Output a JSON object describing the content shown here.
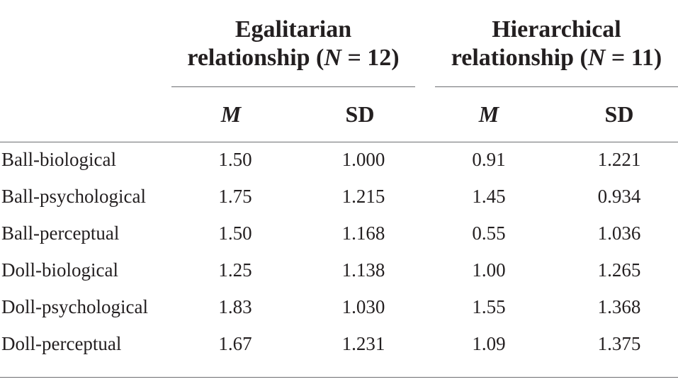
{
  "table": {
    "groups": [
      {
        "line1": "Egalitarian",
        "line2_prefix": "relationship (",
        "n_symbol": "N",
        "n_suffix": " = 12)"
      },
      {
        "line1": "Hierarchical",
        "line2_prefix": "relationship (",
        "n_symbol": "N",
        "n_suffix": " = 11)"
      }
    ],
    "subheaders": [
      "M",
      "SD",
      "M",
      "SD"
    ],
    "rows": [
      {
        "label": "Ball-biological",
        "values": [
          "1.50",
          "1.000",
          "0.91",
          "1.221"
        ]
      },
      {
        "label": "Ball-psychological",
        "values": [
          "1.75",
          "1.215",
          "1.45",
          "0.934"
        ]
      },
      {
        "label": "Ball-perceptual",
        "values": [
          "1.50",
          "1.168",
          "0.55",
          "1.036"
        ]
      },
      {
        "label": "Doll-biological",
        "values": [
          "1.25",
          "1.138",
          "1.00",
          "1.265"
        ]
      },
      {
        "label": "Doll-psychological",
        "values": [
          "1.83",
          "1.030",
          "1.55",
          "1.368"
        ]
      },
      {
        "label": "Doll-perceptual",
        "values": [
          "1.67",
          "1.231",
          "1.09",
          "1.375"
        ]
      }
    ]
  },
  "colors": {
    "text": "#231f20",
    "rule": "#6d6e71"
  }
}
